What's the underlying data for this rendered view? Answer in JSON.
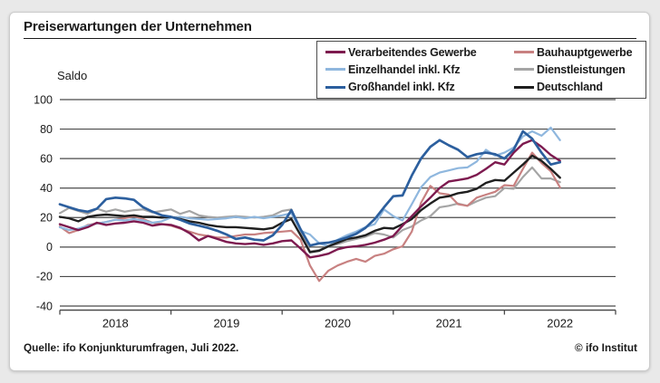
{
  "header": {
    "title": "Preiserwartungen der Unternehmen"
  },
  "chart": {
    "y_unit": "Saldo"
  },
  "footer": {
    "source": "Quelle: ifo Konjunkturumfragen, Juli 2022.",
    "copyright": "© ifo Institut"
  },
  "colors": {
    "grid": "#4a4a4a",
    "axis": "#4a4a4a",
    "text": "#1a1a1a",
    "card_background": "#ffffff",
    "page_background": "#e9e9e9"
  },
  "chart_data": {
    "type": "line",
    "title": "Preiserwartungen der Unternehmen",
    "ylabel": "Saldo",
    "ylim": [
      -40,
      100
    ],
    "y_ticks": [
      100,
      80,
      60,
      40,
      20,
      0,
      -20,
      -40
    ],
    "x_year_ticks": [
      "2018",
      "2019",
      "2020",
      "2021",
      "2022"
    ],
    "frequency": "monthly",
    "start": "2018-01",
    "end": "2022-07",
    "grid": true,
    "legend_position": "top-right",
    "series": [
      {
        "name": "Verarbeitendes Gewerbe",
        "color": "#7d1a4f",
        "line_width": 2.4,
        "values": [
          15.5,
          13.5,
          11.5,
          13.5,
          16.5,
          15,
          16,
          16.5,
          17.5,
          16.5,
          14.5,
          15.5,
          15,
          13,
          9.5,
          4.5,
          7.5,
          5.5,
          3.5,
          2.5,
          2,
          2.5,
          1.5,
          2.5,
          4,
          4.5,
          -1,
          -7,
          -6,
          -4.5,
          -1.5,
          0,
          0.5,
          1.5,
          3,
          5,
          7.5,
          14.5,
          21,
          27.5,
          33.5,
          40,
          44.5,
          45.5,
          46.5,
          49,
          53,
          57.5,
          56,
          64,
          70,
          72.5,
          68,
          62.5,
          58.5
        ]
      },
      {
        "name": "Einzelhandel inkl. Kfz",
        "color": "#8fb7de",
        "line_width": 2.2,
        "values": [
          13.5,
          11.5,
          12.5,
          14.5,
          16,
          17,
          18.5,
          18,
          19,
          18,
          16.5,
          17.5,
          20,
          20.5,
          19.5,
          19,
          18.5,
          19,
          19.5,
          20.5,
          19.5,
          20.5,
          19.5,
          20.5,
          21.5,
          23,
          11,
          8.5,
          2.5,
          0.5,
          5,
          8,
          10.5,
          13.5,
          15.5,
          25.5,
          21,
          18,
          29,
          40.5,
          47.5,
          50.5,
          52,
          53.5,
          54,
          58,
          66,
          62,
          64,
          67.5,
          75,
          78.5,
          75.5,
          81,
          72.5
        ]
      },
      {
        "name": "Großhandel inkl. Kfz",
        "color": "#2c5f9e",
        "line_width": 2.7,
        "values": [
          29,
          27,
          25,
          24,
          26,
          32.5,
          33.5,
          33,
          32,
          27,
          24,
          21.5,
          20.5,
          18.5,
          16,
          14.5,
          13,
          11,
          8.5,
          5.5,
          6.5,
          5,
          4.5,
          8,
          15,
          25,
          12,
          1,
          2.5,
          3,
          4.5,
          6.5,
          9,
          13,
          19,
          27,
          34.5,
          35,
          48.5,
          60,
          68,
          72.5,
          69,
          66,
          61,
          63,
          64,
          63,
          60,
          66,
          78.5,
          73.5,
          64,
          56,
          57.5
        ]
      },
      {
        "name": "Bauhauptgewerbe",
        "color": "#c88181",
        "line_width": 2.2,
        "values": [
          14,
          9.5,
          11.5,
          15,
          16,
          17,
          18.5,
          19.5,
          21,
          19,
          16.5,
          15.5,
          14.5,
          12.5,
          10.5,
          8.5,
          7.5,
          6.5,
          6.5,
          7.5,
          8.5,
          8.5,
          9.5,
          10,
          10.5,
          11,
          5,
          -12.5,
          -23,
          -16,
          -12.5,
          -10,
          -8,
          -10,
          -6,
          -4.5,
          -1.5,
          0.5,
          10.5,
          30,
          41.5,
          36.5,
          35.5,
          29,
          28,
          33.5,
          35.5,
          37.5,
          42,
          41.5,
          53,
          64,
          57,
          51.5,
          40.5
        ]
      },
      {
        "name": "Dienstleistungen",
        "color": "#a5a5a5",
        "line_width": 2.2,
        "values": [
          23,
          26.5,
          24.5,
          22.5,
          26,
          24,
          25.5,
          24,
          25,
          25.5,
          23.5,
          24.5,
          25.5,
          22.5,
          24.5,
          21.5,
          20.5,
          20,
          20.5,
          21,
          20.5,
          20,
          20.5,
          21.5,
          24.5,
          25.5,
          11,
          -3,
          -2,
          0.5,
          2,
          4,
          5.5,
          7,
          9.5,
          8.5,
          6.5,
          11.5,
          14,
          18,
          21,
          27,
          28,
          29.5,
          28,
          31,
          33.5,
          34.5,
          40,
          39.5,
          47.5,
          54,
          46.5,
          46.5,
          44
        ]
      },
      {
        "name": "Deutschland",
        "color": "#1f1f1f",
        "line_width": 2.4,
        "values": [
          20.5,
          19.5,
          17.5,
          20.5,
          21.5,
          22,
          21.5,
          21,
          21.5,
          20.5,
          20.5,
          20,
          20.5,
          19,
          17.5,
          16.5,
          15,
          14,
          13.5,
          13.5,
          13,
          12.5,
          12,
          13,
          16.5,
          19,
          8,
          -3.5,
          -2.5,
          0.5,
          3,
          5.5,
          6.5,
          8,
          11,
          13,
          12.5,
          15.5,
          19,
          25,
          29.5,
          33.5,
          34.5,
          36.5,
          37.5,
          39.5,
          43.5,
          45.5,
          45,
          50.5,
          56,
          62,
          58.5,
          53,
          47
        ]
      }
    ],
    "draw_order": [
      "Dienstleistungen",
      "Bauhauptgewerbe",
      "Einzelhandel inkl. Kfz",
      "Deutschland",
      "Verarbeitendes Gewerbe",
      "Großhandel inkl. Kfz"
    ]
  }
}
